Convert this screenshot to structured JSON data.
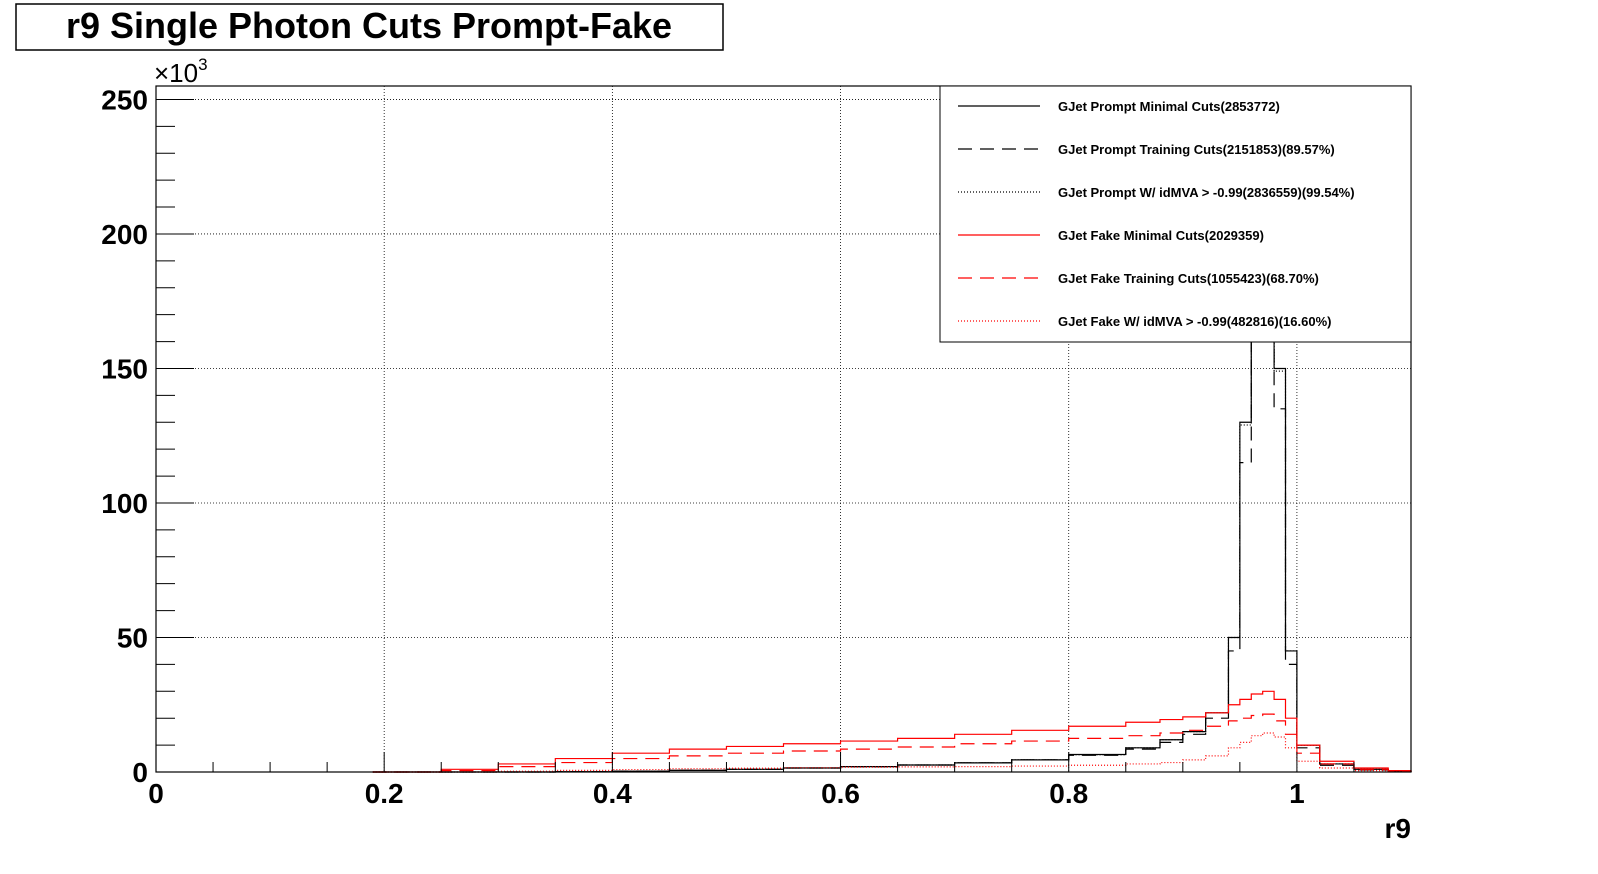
{
  "chart_data": {
    "type": "line",
    "title": "r9 Single Photon Cuts Prompt-Fake",
    "xlabel": "r9",
    "ylabel": "",
    "y_multiplier_label": "×10",
    "y_multiplier_exp": "3",
    "xlim": [
      0,
      1.1
    ],
    "ylim": [
      0,
      255
    ],
    "x_ticks": [
      0,
      0.2,
      0.4,
      0.6,
      0.8,
      1
    ],
    "x_tick_labels": [
      "0",
      "0.2",
      "0.4",
      "0.6",
      "0.8",
      "1"
    ],
    "y_ticks": [
      0,
      50,
      100,
      150,
      200,
      250
    ],
    "y_tick_labels": [
      "0",
      "50",
      "100",
      "150",
      "200",
      "250"
    ],
    "grid": true,
    "legend_position": "top-right",
    "x": [
      0.19,
      0.25,
      0.3,
      0.35,
      0.4,
      0.45,
      0.5,
      0.55,
      0.6,
      0.65,
      0.7,
      0.75,
      0.8,
      0.85,
      0.88,
      0.9,
      0.92,
      0.94,
      0.95,
      0.96,
      0.97,
      0.98,
      0.99,
      1.0,
      1.02,
      1.05,
      1.08,
      1.1
    ],
    "series": [
      {
        "name": "GJet Prompt Minimal Cuts(2853772)",
        "color": "#000000",
        "dash": "solid",
        "values": [
          0,
          0,
          0,
          0.1,
          0.3,
          0.6,
          1,
          1.5,
          2,
          2.6,
          3.4,
          4.5,
          6.5,
          9,
          12,
          15,
          22,
          50,
          130,
          250,
          250,
          150,
          45,
          10,
          3,
          1,
          0.3,
          0
        ]
      },
      {
        "name": "GJet Prompt Training Cuts(2151853)(89.57%)",
        "color": "#000000",
        "dash": "longdash",
        "values": [
          0,
          0,
          0,
          0.1,
          0.3,
          0.6,
          1,
          1.5,
          2,
          2.6,
          3.4,
          4.5,
          6.2,
          8.5,
          11,
          14,
          20,
          45,
          115,
          230,
          230,
          135,
          40,
          9,
          2.5,
          0.8,
          0.2,
          0
        ]
      },
      {
        "name": "GJet Prompt W/ idMVA > -0.99(2836559)(99.54%)",
        "color": "#000000",
        "dash": "dotted",
        "values": [
          0,
          0,
          0,
          0.1,
          0.3,
          0.6,
          1,
          1.5,
          2,
          2.6,
          3.4,
          4.5,
          6.4,
          9,
          12,
          15,
          22,
          50,
          129,
          249,
          249,
          149,
          45,
          10,
          3,
          1,
          0.3,
          0
        ]
      },
      {
        "name": "GJet Fake Minimal Cuts(2029359)",
        "color": "#ff0000",
        "dash": "solid",
        "values": [
          0,
          1,
          3,
          5,
          7,
          8.5,
          9.5,
          10.5,
          11.5,
          12.5,
          14,
          15.5,
          17,
          18.5,
          19.5,
          20.5,
          22,
          25,
          27,
          29,
          30,
          27,
          20,
          10,
          4,
          1.5,
          0.5,
          0
        ]
      },
      {
        "name": "GJet Fake Training Cuts(1055423)(68.70%)",
        "color": "#ff0000",
        "dash": "longdash",
        "values": [
          0,
          0.5,
          2,
          3.5,
          5,
          6,
          7,
          7.8,
          8.5,
          9.3,
          10.5,
          11.5,
          12.5,
          13.5,
          14.5,
          15.5,
          17,
          19,
          20,
          21,
          21.5,
          19,
          14,
          7,
          3,
          1,
          0.3,
          0
        ]
      },
      {
        "name": "GJet Fake W/ idMVA > -0.99(482816)(16.60%)",
        "color": "#ff0000",
        "dash": "dotted",
        "values": [
          0,
          0,
          0.3,
          0.6,
          0.9,
          1.2,
          1.4,
          1.6,
          1.8,
          1.9,
          2,
          2.2,
          2.5,
          3,
          3.5,
          4.5,
          6,
          9,
          11,
          13.5,
          14.5,
          13,
          9,
          4,
          1.5,
          0.5,
          0.2,
          0
        ]
      }
    ]
  }
}
